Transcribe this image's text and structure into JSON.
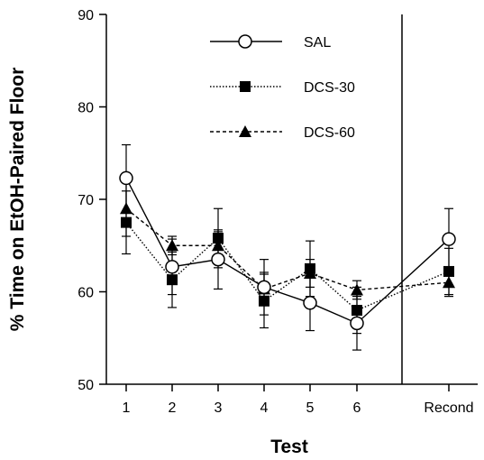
{
  "chart_data": {
    "type": "line",
    "title": "",
    "xlabel": "Test",
    "ylabel": "% Time on EtOH-Paired Floor",
    "ylim": [
      50,
      90
    ],
    "y_ticks": [
      50,
      60,
      70,
      80,
      90
    ],
    "categories": [
      "1",
      "2",
      "3",
      "4",
      "5",
      "6",
      "Recond"
    ],
    "grid": false,
    "legend_position": "top-center",
    "separator_after_category": "6",
    "series": [
      {
        "name": "SAL",
        "marker": "open-circle",
        "line_style": "solid",
        "color": "#000000",
        "values": [
          72.3,
          62.7,
          63.5,
          60.5,
          58.8,
          56.6,
          65.7
        ],
        "errors": [
          3.6,
          3.0,
          3.2,
          3.0,
          3.0,
          2.9,
          3.3
        ]
      },
      {
        "name": "DCS-30",
        "marker": "filled-square",
        "line_style": "dotted",
        "color": "#000000",
        "values": [
          67.5,
          61.3,
          65.8,
          59.0,
          62.5,
          58.0,
          62.2
        ],
        "errors": [
          3.4,
          3.0,
          3.2,
          2.9,
          3.0,
          2.5,
          2.5
        ]
      },
      {
        "name": "DCS-60",
        "marker": "filled-triangle",
        "line_style": "dashed",
        "color": "#000000",
        "values": [
          69.0,
          65.0,
          65.0,
          60.3,
          62.0,
          60.2,
          61.0
        ],
        "errors": [
          3.0,
          1.0,
          1.5,
          1.8,
          1.5,
          1.0,
          1.5
        ]
      }
    ]
  }
}
